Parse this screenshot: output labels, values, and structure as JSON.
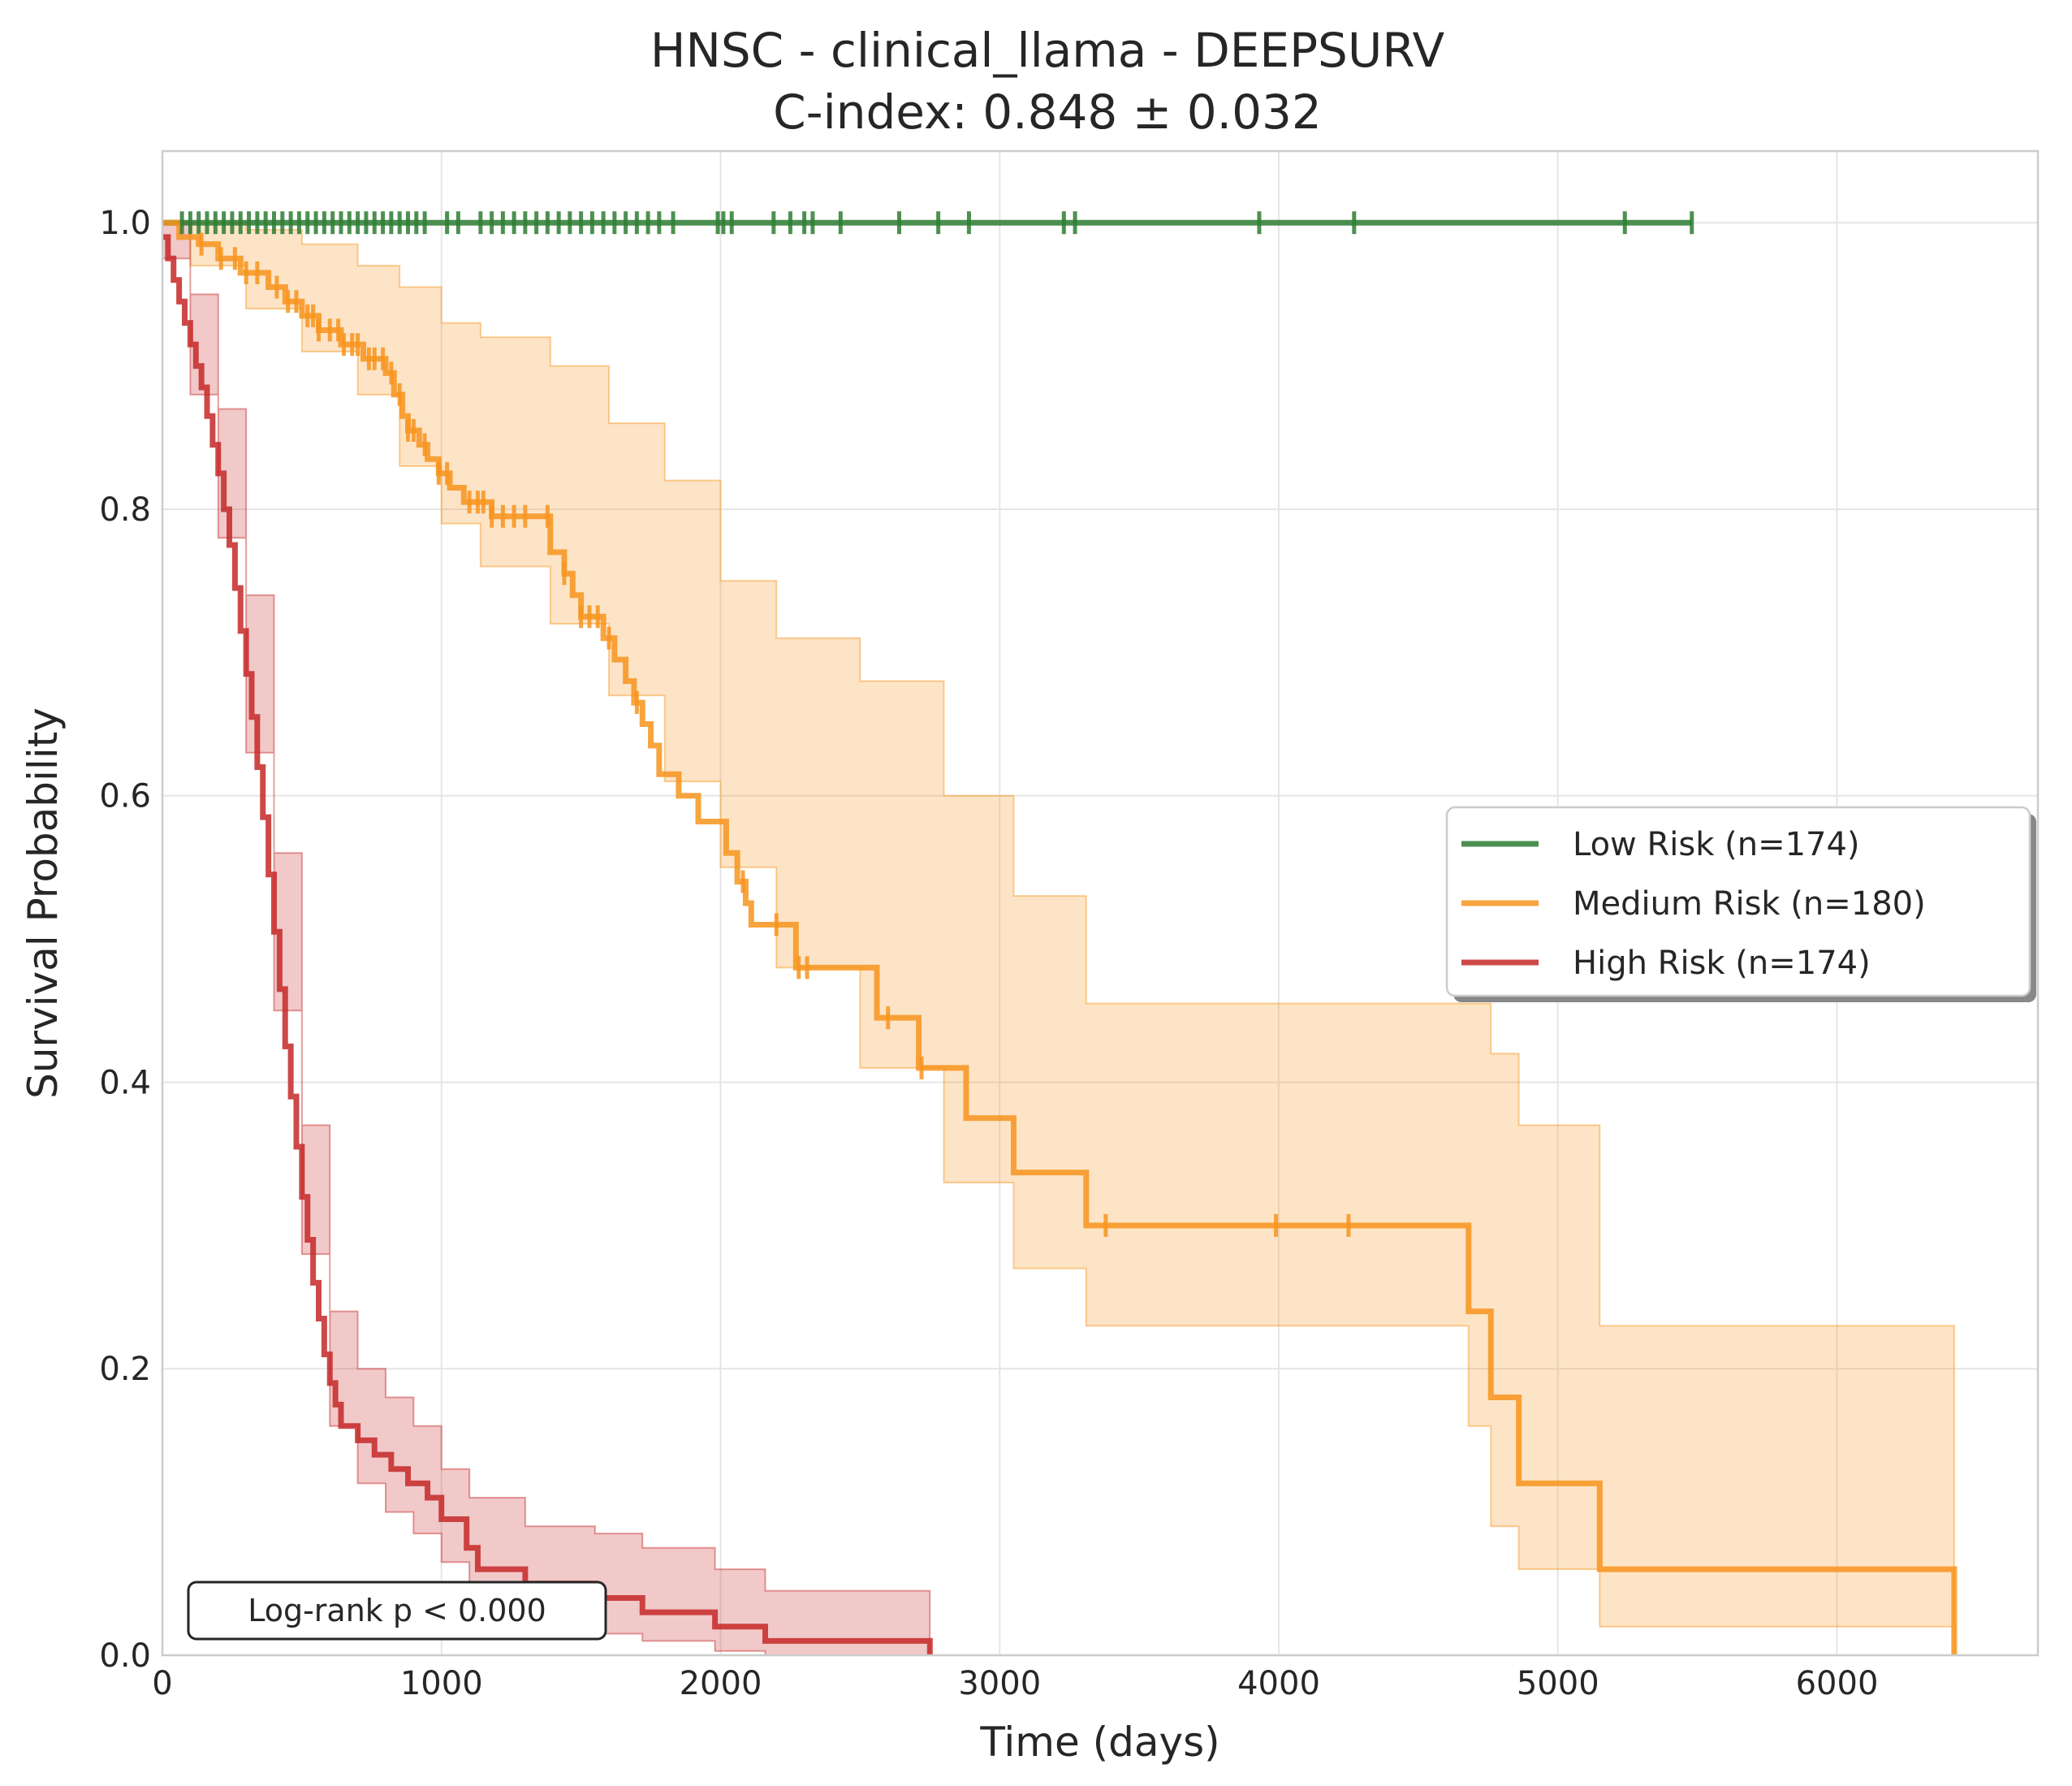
{
  "chart_data": {
    "type": "line",
    "title": "HNSC - clinical_llama - DEEPSURV",
    "subtitle": "C-index: 0.848 ± 0.032",
    "xlabel": "Time (days)",
    "ylabel": "Survival Probability",
    "xlim": [
      0,
      6720
    ],
    "ylim": [
      0,
      1.05
    ],
    "xticks": [
      0,
      1000,
      2000,
      3000,
      4000,
      5000,
      6000
    ],
    "xtick_labels": [
      "0",
      "1000",
      "2000",
      "3000",
      "4000",
      "5000",
      "6000"
    ],
    "yticks": [
      0,
      0.2,
      0.4,
      0.6,
      0.8,
      1.0
    ],
    "ytick_labels": [
      "0.0",
      "0.2",
      "0.4",
      "0.6",
      "0.8",
      "1.0"
    ],
    "grid": true,
    "legend_position": "center-right",
    "annotation": "Log-rank p < 0.000",
    "series": [
      {
        "name": "Low Risk (n=174)",
        "color": "#2e7d32",
        "steps": [
          [
            0,
            1.0
          ],
          [
            5480,
            1.0
          ]
        ],
        "ci": [],
        "censor_times": [
          70,
          100,
          130,
          160,
          190,
          220,
          250,
          280,
          310,
          340,
          370,
          400,
          430,
          460,
          490,
          520,
          550,
          580,
          610,
          640,
          670,
          700,
          730,
          760,
          790,
          820,
          850,
          880,
          910,
          940,
          1020,
          1060,
          1140,
          1180,
          1220,
          1260,
          1300,
          1340,
          1380,
          1420,
          1460,
          1500,
          1540,
          1580,
          1620,
          1660,
          1700,
          1740,
          1780,
          1830,
          1990,
          2010,
          2040,
          2190,
          2250,
          2300,
          2330,
          2430,
          2640,
          2780,
          2890,
          3230,
          3270,
          3930,
          4270,
          5240,
          5480
        ]
      },
      {
        "name": "Medium Risk (n=180)",
        "color": "#f7941d",
        "steps": [
          [
            0,
            1.0
          ],
          [
            60,
            0.99
          ],
          [
            130,
            0.985
          ],
          [
            200,
            0.975
          ],
          [
            280,
            0.965
          ],
          [
            380,
            0.955
          ],
          [
            440,
            0.945
          ],
          [
            500,
            0.935
          ],
          [
            560,
            0.925
          ],
          [
            640,
            0.915
          ],
          [
            720,
            0.905
          ],
          [
            800,
            0.895
          ],
          [
            830,
            0.88
          ],
          [
            860,
            0.865
          ],
          [
            880,
            0.855
          ],
          [
            920,
            0.845
          ],
          [
            950,
            0.835
          ],
          [
            990,
            0.825
          ],
          [
            1030,
            0.815
          ],
          [
            1080,
            0.805
          ],
          [
            1180,
            0.795
          ],
          [
            1390,
            0.77
          ],
          [
            1440,
            0.755
          ],
          [
            1470,
            0.74
          ],
          [
            1500,
            0.725
          ],
          [
            1580,
            0.71
          ],
          [
            1620,
            0.695
          ],
          [
            1660,
            0.68
          ],
          [
            1690,
            0.665
          ],
          [
            1720,
            0.65
          ],
          [
            1750,
            0.635
          ],
          [
            1780,
            0.615
          ],
          [
            1850,
            0.6
          ],
          [
            1920,
            0.582
          ],
          [
            2020,
            0.56
          ],
          [
            2060,
            0.54
          ],
          [
            2090,
            0.525
          ],
          [
            2110,
            0.51
          ],
          [
            2270,
            0.48
          ],
          [
            2560,
            0.445
          ],
          [
            2710,
            0.41
          ],
          [
            2880,
            0.375
          ],
          [
            3050,
            0.337
          ],
          [
            3310,
            0.3
          ],
          [
            4680,
            0.24
          ],
          [
            4760,
            0.18
          ],
          [
            4860,
            0.12
          ],
          [
            5150,
            0.06
          ],
          [
            6420,
            0.0
          ]
        ],
        "ci": [
          [
            0,
            1.0,
            1.0
          ],
          [
            100,
            0.97,
            1.0
          ],
          [
            300,
            0.94,
            0.995
          ],
          [
            500,
            0.91,
            0.985
          ],
          [
            700,
            0.88,
            0.97
          ],
          [
            850,
            0.83,
            0.955
          ],
          [
            1000,
            0.79,
            0.93
          ],
          [
            1140,
            0.76,
            0.92
          ],
          [
            1390,
            0.72,
            0.9
          ],
          [
            1600,
            0.67,
            0.86
          ],
          [
            1800,
            0.61,
            0.82
          ],
          [
            2000,
            0.55,
            0.75
          ],
          [
            2200,
            0.48,
            0.71
          ],
          [
            2500,
            0.41,
            0.68
          ],
          [
            2800,
            0.33,
            0.6
          ],
          [
            3050,
            0.27,
            0.53
          ],
          [
            3310,
            0.23,
            0.455
          ],
          [
            4680,
            0.16,
            0.455
          ],
          [
            4760,
            0.09,
            0.42
          ],
          [
            4860,
            0.06,
            0.37
          ],
          [
            5150,
            0.02,
            0.23
          ],
          [
            6420,
            0.0,
            0.23
          ]
        ],
        "censor_times": [
          140,
          210,
          260,
          300,
          340,
          410,
          450,
          480,
          520,
          540,
          560,
          600,
          630,
          650,
          680,
          700,
          740,
          760,
          790,
          820,
          850,
          880,
          900,
          940,
          990,
          1020,
          1100,
          1130,
          1150,
          1180,
          1220,
          1260,
          1300,
          1380,
          1440,
          1500,
          1530,
          1560,
          1600,
          1700,
          2080,
          2200,
          2280,
          2310,
          2600,
          2720,
          3380,
          3990,
          4250
        ]
      },
      {
        "name": "High Risk (n=174)",
        "color": "#c62828",
        "steps": [
          [
            0,
            0.99
          ],
          [
            20,
            0.975
          ],
          [
            40,
            0.96
          ],
          [
            60,
            0.945
          ],
          [
            80,
            0.93
          ],
          [
            100,
            0.915
          ],
          [
            120,
            0.9
          ],
          [
            140,
            0.885
          ],
          [
            160,
            0.865
          ],
          [
            180,
            0.845
          ],
          [
            200,
            0.825
          ],
          [
            220,
            0.8
          ],
          [
            240,
            0.775
          ],
          [
            260,
            0.745
          ],
          [
            280,
            0.715
          ],
          [
            300,
            0.685
          ],
          [
            320,
            0.655
          ],
          [
            340,
            0.62
          ],
          [
            360,
            0.585
          ],
          [
            380,
            0.545
          ],
          [
            400,
            0.505
          ],
          [
            420,
            0.465
          ],
          [
            440,
            0.425
          ],
          [
            460,
            0.39
          ],
          [
            480,
            0.355
          ],
          [
            500,
            0.32
          ],
          [
            520,
            0.29
          ],
          [
            540,
            0.26
          ],
          [
            560,
            0.235
          ],
          [
            580,
            0.21
          ],
          [
            600,
            0.19
          ],
          [
            620,
            0.175
          ],
          [
            640,
            0.16
          ],
          [
            700,
            0.15
          ],
          [
            760,
            0.14
          ],
          [
            820,
            0.13
          ],
          [
            880,
            0.12
          ],
          [
            950,
            0.11
          ],
          [
            1000,
            0.095
          ],
          [
            1090,
            0.075
          ],
          [
            1130,
            0.06
          ],
          [
            1300,
            0.05
          ],
          [
            1550,
            0.04
          ],
          [
            1720,
            0.03
          ],
          [
            1980,
            0.02
          ],
          [
            2160,
            0.01
          ],
          [
            2750,
            0.0
          ]
        ],
        "ci": [
          [
            0,
            0.975,
            1.0
          ],
          [
            100,
            0.88,
            0.95
          ],
          [
            200,
            0.78,
            0.87
          ],
          [
            300,
            0.63,
            0.74
          ],
          [
            400,
            0.45,
            0.56
          ],
          [
            500,
            0.28,
            0.37
          ],
          [
            600,
            0.16,
            0.24
          ],
          [
            700,
            0.12,
            0.2
          ],
          [
            800,
            0.1,
            0.18
          ],
          [
            900,
            0.085,
            0.16
          ],
          [
            1000,
            0.065,
            0.13
          ],
          [
            1100,
            0.045,
            0.11
          ],
          [
            1300,
            0.025,
            0.09
          ],
          [
            1550,
            0.015,
            0.085
          ],
          [
            1720,
            0.01,
            0.075
          ],
          [
            1980,
            0.003,
            0.06
          ],
          [
            2160,
            0.0,
            0.045
          ],
          [
            2750,
            0.0,
            0.04
          ]
        ],
        "censor_times": []
      }
    ]
  }
}
